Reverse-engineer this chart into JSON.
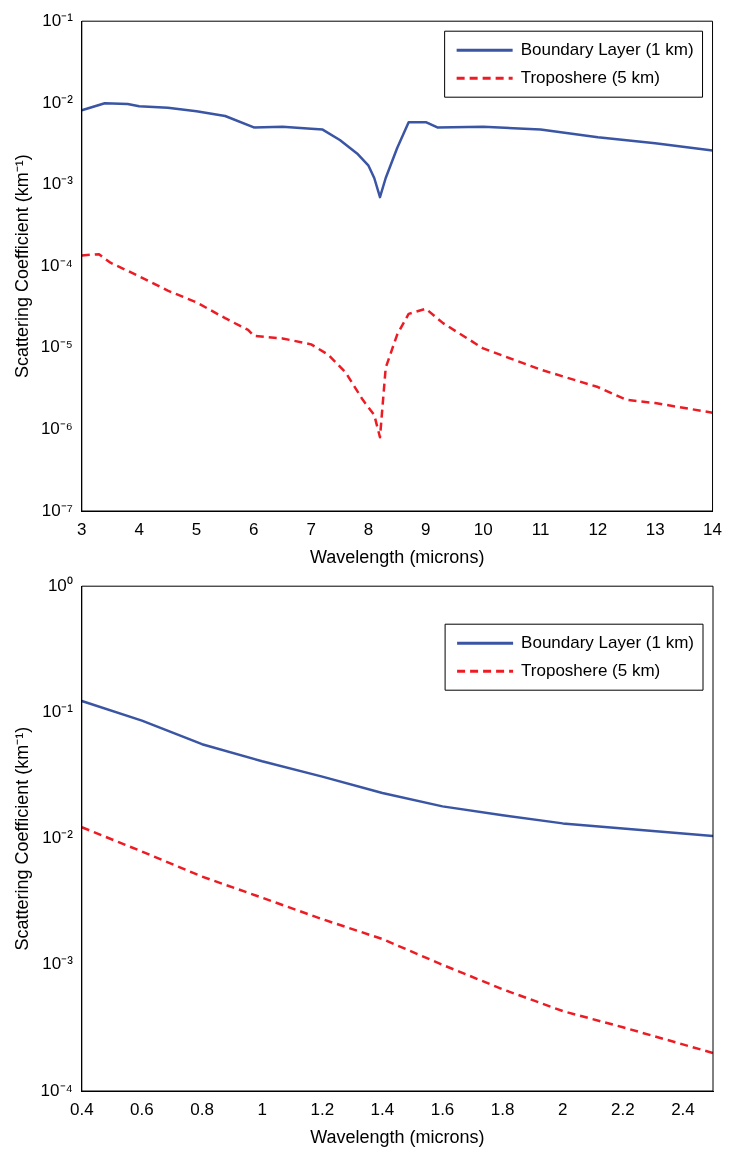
{
  "chart_data": [
    {
      "type": "line",
      "xlabel": "Wavelength (microns)",
      "ylabel": "Scattering Coefficient (km⁻¹)",
      "log": "y",
      "grid": false,
      "legend": "top right",
      "marker": "none",
      "xlim": [
        3,
        14
      ],
      "xticks": [
        3,
        4,
        5,
        6,
        7,
        8,
        9,
        10,
        11,
        12,
        13,
        14
      ],
      "ylim": [
        1e-07,
        0.1
      ],
      "yticks": [
        {
          "value": 1e-07,
          "label": "10⁻⁷"
        },
        {
          "value": 1e-06,
          "label": "10⁻⁶"
        },
        {
          "value": 1e-05,
          "label": "10⁻⁵"
        },
        {
          "value": 0.0001,
          "label": "10⁻⁴"
        },
        {
          "value": 0.001,
          "label": "10⁻³"
        },
        {
          "value": 0.01,
          "label": "10⁻²"
        },
        {
          "value": 0.1,
          "label": "10⁻¹"
        }
      ],
      "series": [
        {
          "name": "Boundary Layer (1 km)",
          "color": "#3a55a4",
          "line_style": "solid",
          "x": [
            3,
            3.4,
            3.8,
            4,
            4.5,
            5,
            5.5,
            6,
            6.5,
            7,
            7.2,
            7.5,
            7.8,
            8,
            8.1,
            8.2,
            8.3,
            8.5,
            8.7,
            9,
            9.2,
            10,
            11,
            12,
            13,
            14
          ],
          "values": [
            0.0081,
            0.0099,
            0.0097,
            0.0091,
            0.0087,
            0.0079,
            0.0069,
            0.005,
            0.0051,
            0.0048,
            0.0047,
            0.0035,
            0.0024,
            0.0017,
            0.0012,
            0.0007,
            0.0012,
            0.0028,
            0.0058,
            0.0058,
            0.005,
            0.0051,
            0.0047,
            0.0038,
            0.0032,
            0.0026
          ]
        },
        {
          "name": "Troposhere (5 km)",
          "color": "#ed1c24",
          "line_style": "dashed",
          "x": [
            3,
            3.3,
            3.5,
            4,
            4.5,
            5,
            5.5,
            5.9,
            6,
            6.5,
            7,
            7.3,
            7.6,
            7.9,
            8.1,
            8.2,
            8.3,
            8.5,
            8.7,
            9,
            9.3,
            10,
            11,
            12,
            12.5,
            13,
            14
          ],
          "values": [
            0.000135,
            0.00014,
            0.00011,
            7.5e-05,
            5e-05,
            3.6e-05,
            2.3e-05,
            1.65e-05,
            1.4e-05,
            1.3e-05,
            1.1e-05,
            8.2e-06,
            5e-06,
            2.3e-06,
            1.5e-06,
            8e-07,
            5.7e-06,
            1.45e-05,
            2.6e-05,
            3e-05,
            2e-05,
            9.8e-06,
            5.4e-06,
            3.3e-06,
            2.3e-06,
            2.1e-06,
            1.6e-06
          ]
        }
      ]
    },
    {
      "type": "line",
      "xlabel": "Wavelength (microns)",
      "ylabel": "Scattering Coefficient (km⁻¹)",
      "log": "y",
      "grid": false,
      "legend": "top right",
      "marker": "none",
      "xlim": [
        0.4,
        2.5
      ],
      "xticks": [
        0.4,
        0.6,
        0.8,
        1,
        1.2,
        1.4,
        1.6,
        1.8,
        2,
        2.2,
        2.4
      ],
      "ylim": [
        0.0001,
        1
      ],
      "yticks": [
        {
          "value": 0.0001,
          "label": "10⁻⁴"
        },
        {
          "value": 0.001,
          "label": "10⁻³"
        },
        {
          "value": 0.01,
          "label": "10⁻²"
        },
        {
          "value": 0.1,
          "label": "10⁻¹"
        },
        {
          "value": 1,
          "label": "10⁰"
        }
      ],
      "series": [
        {
          "name": "Boundary Layer (1 km)",
          "color": "#3a55a4",
          "line_style": "solid",
          "x": [
            0.4,
            0.6,
            0.8,
            1,
            1.2,
            1.4,
            1.6,
            1.8,
            2,
            2.2,
            2.5
          ],
          "values": [
            0.123,
            0.086,
            0.056,
            0.041,
            0.031,
            0.023,
            0.018,
            0.0153,
            0.0132,
            0.012,
            0.0105
          ]
        },
        {
          "name": "Troposhere (5 km)",
          "color": "#ed1c24",
          "line_style": "dashed",
          "x": [
            0.4,
            0.6,
            0.8,
            1,
            1.2,
            1.4,
            1.6,
            1.8,
            2,
            2.2,
            2.5
          ],
          "values": [
            0.0123,
            0.0079,
            0.005,
            0.0034,
            0.0023,
            0.0016,
            0.001,
            0.00064,
            0.00043,
            0.00032,
            0.0002
          ]
        }
      ]
    }
  ]
}
